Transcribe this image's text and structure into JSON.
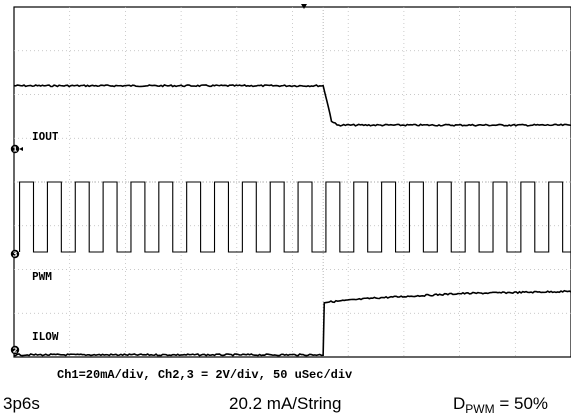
{
  "chart_data": {
    "type": "line",
    "title": "",
    "grid": true,
    "divisions": {
      "x": 10,
      "y": 8
    },
    "x_unit": "div",
    "xlim": [
      0,
      10
    ],
    "ylim": [
      0,
      8
    ],
    "trigger_div": 5.55,
    "series": [
      {
        "name": "IOUT",
        "channel": 1,
        "points": [
          [
            0,
            6.2
          ],
          [
            5.55,
            6.2
          ],
          [
            5.62,
            5.85
          ],
          [
            5.7,
            5.4
          ],
          [
            5.8,
            5.3
          ],
          [
            10,
            5.3
          ]
        ]
      },
      {
        "name": "PWM",
        "channel": 2,
        "waveform": "square",
        "high_div": 4.0,
        "low_div": 2.4,
        "period_div": 0.5,
        "duty": 0.5,
        "x_range": [
          0.1,
          10
        ]
      },
      {
        "name": "ILOW",
        "channel": 3,
        "points": [
          [
            0,
            0.05
          ],
          [
            5.55,
            0.05
          ],
          [
            5.57,
            1.25
          ],
          [
            6.5,
            1.35
          ],
          [
            8,
            1.45
          ],
          [
            10,
            1.5
          ]
        ]
      }
    ],
    "trace_labels": [
      "IOUT",
      "PWM",
      "ILOW"
    ],
    "ground_markers": [
      "1",
      "3",
      "2"
    ]
  },
  "scale_text": "Ch1=20mA/div, Ch2,3 = 2V/div, 50 uSec/div",
  "caption": {
    "left": "3p6s",
    "middle": "20.2 mA/String",
    "right_prefix": "D",
    "right_sub": "PWM",
    "right_suffix": " = 50%"
  }
}
